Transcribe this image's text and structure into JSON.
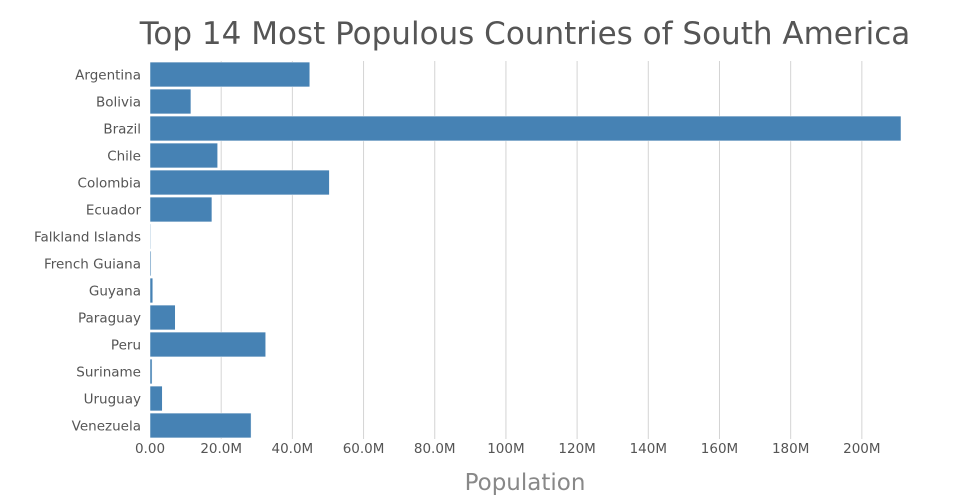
{
  "chart_data": {
    "type": "bar",
    "orientation": "horizontal",
    "title": "Top 14 Most Populous Countries of South America",
    "xlabel": "Population",
    "ylabel": "",
    "xlim": [
      0,
      211000000
    ],
    "grid": true,
    "bar_color": "#4682b4",
    "x_ticks": [
      {
        "value": 0,
        "label": "0.00"
      },
      {
        "value": 20000000,
        "label": "20.0M"
      },
      {
        "value": 40000000,
        "label": "40.0M"
      },
      {
        "value": 60000000,
        "label": "60.0M"
      },
      {
        "value": 80000000,
        "label": "80.0M"
      },
      {
        "value": 100000000,
        "label": "100M"
      },
      {
        "value": 120000000,
        "label": "120M"
      },
      {
        "value": 140000000,
        "label": "140M"
      },
      {
        "value": 160000000,
        "label": "160M"
      },
      {
        "value": 180000000,
        "label": "180M"
      },
      {
        "value": 200000000,
        "label": "200M"
      }
    ],
    "categories": [
      "Argentina",
      "Bolivia",
      "Brazil",
      "Chile",
      "Colombia",
      "Ecuador",
      "Falkland Islands",
      "French Guiana",
      "Guyana",
      "Paraguay",
      "Peru",
      "Suriname",
      "Uruguay",
      "Venezuela"
    ],
    "values": [
      44900000,
      11500000,
      211000000,
      19000000,
      50400000,
      17400000,
      3000,
      290000,
      790000,
      7100000,
      32500000,
      580000,
      3460000,
      28400000
    ]
  }
}
